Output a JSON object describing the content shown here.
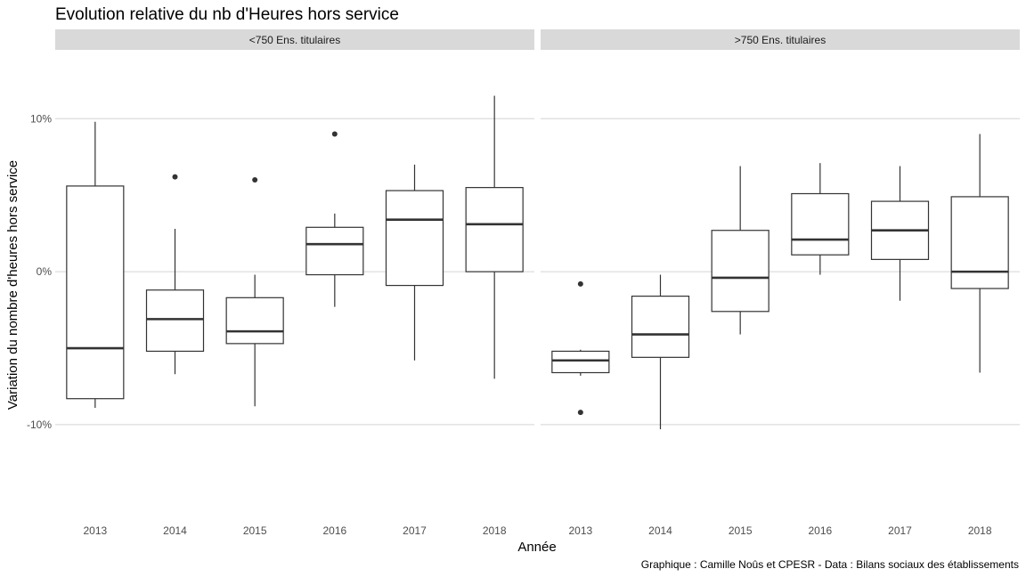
{
  "chart_data": {
    "type": "boxplot",
    "title": "Evolution relative du nb d'Heures hors service",
    "xlabel": "Année",
    "ylabel": "Variation du nombre d'heures hors service",
    "caption": "Graphique : Camille Noûs et CPESR - Data : Bilans sociaux des établissements",
    "categories": [
      "2013",
      "2014",
      "2015",
      "2016",
      "2017",
      "2018"
    ],
    "ylim": [
      -16,
      14.5
    ],
    "yticks": [
      -10,
      0,
      10
    ],
    "ytick_labels": [
      "-10%",
      "0%",
      "10%"
    ],
    "grid": true,
    "colors": {
      "strip_bg": "#d9d9d9",
      "grid": "#d4d4d4",
      "box_line": "#333333",
      "background": "#ffffff"
    },
    "panels": [
      {
        "label": "<750 Ens. titulaires",
        "boxes": [
          {
            "category": "2013",
            "whisker_low": -8.9,
            "q1": -8.3,
            "median": -5.0,
            "q3": 5.6,
            "whisker_high": 9.8,
            "outliers": []
          },
          {
            "category": "2014",
            "whisker_low": -6.7,
            "q1": -5.2,
            "median": -3.1,
            "q3": -1.2,
            "whisker_high": 2.8,
            "outliers": [
              6.2
            ]
          },
          {
            "category": "2015",
            "whisker_low": -8.8,
            "q1": -4.7,
            "median": -3.9,
            "q3": -1.7,
            "whisker_high": -0.2,
            "outliers": [
              6.0
            ]
          },
          {
            "category": "2016",
            "whisker_low": -2.3,
            "q1": -0.2,
            "median": 1.8,
            "q3": 2.9,
            "whisker_high": 3.8,
            "outliers": [
              9.0
            ]
          },
          {
            "category": "2017",
            "whisker_low": -5.8,
            "q1": -0.9,
            "median": 3.4,
            "q3": 5.3,
            "whisker_high": 7.0,
            "outliers": []
          },
          {
            "category": "2018",
            "whisker_low": -7.0,
            "q1": 0.0,
            "median": 3.1,
            "q3": 5.5,
            "whisker_high": 11.5,
            "outliers": []
          }
        ]
      },
      {
        "label": ">750 Ens. titulaires",
        "boxes": [
          {
            "category": "2013",
            "whisker_low": -6.8,
            "q1": -6.6,
            "median": -5.8,
            "q3": -5.2,
            "whisker_high": -5.1,
            "outliers": [
              -0.8,
              -9.2
            ]
          },
          {
            "category": "2014",
            "whisker_low": -10.3,
            "q1": -5.6,
            "median": -4.1,
            "q3": -1.6,
            "whisker_high": -0.2,
            "outliers": []
          },
          {
            "category": "2015",
            "whisker_low": -4.1,
            "q1": -2.6,
            "median": -0.4,
            "q3": 2.7,
            "whisker_high": 6.9,
            "outliers": []
          },
          {
            "category": "2016",
            "whisker_low": -0.2,
            "q1": 1.1,
            "median": 2.1,
            "q3": 5.1,
            "whisker_high": 7.1,
            "outliers": []
          },
          {
            "category": "2017",
            "whisker_low": -1.9,
            "q1": 0.8,
            "median": 2.7,
            "q3": 4.6,
            "whisker_high": 6.9,
            "outliers": []
          },
          {
            "category": "2018",
            "whisker_low": -6.6,
            "q1": -1.1,
            "median": 0.0,
            "q3": 4.9,
            "whisker_high": 9.0,
            "outliers": []
          }
        ]
      }
    ]
  }
}
